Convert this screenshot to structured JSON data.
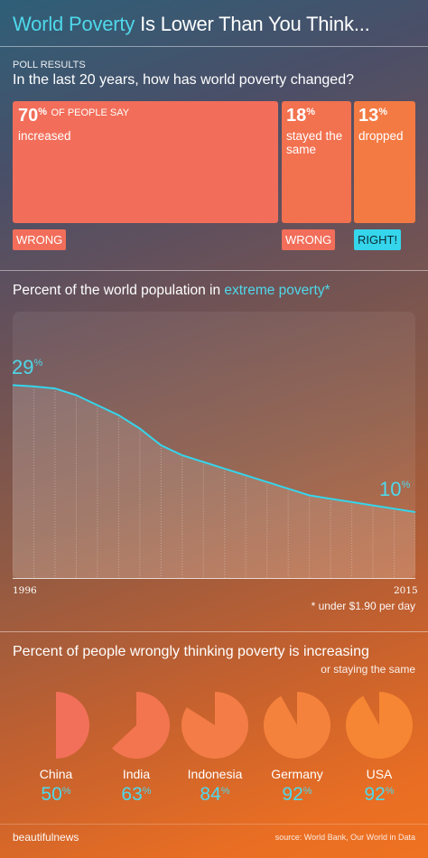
{
  "header": {
    "title_highlight": "World Poverty",
    "title_rest": " Is Lower Than You Think..."
  },
  "poll": {
    "label": "POLL RESULTS",
    "question": "In the last 20 years, how has world poverty changed?",
    "boxes": [
      {
        "value": "70",
        "unit": "%",
        "lead": "OF PEOPLE SAY",
        "text": "increased",
        "verdict": "WRONG",
        "color": "#f26e5a"
      },
      {
        "value": "18",
        "unit": "%",
        "lead": "",
        "text": "stayed the same",
        "verdict": "WRONG",
        "color": "#f2714f"
      },
      {
        "value": "13",
        "unit": "%",
        "lead": "",
        "text": "dropped",
        "verdict": "RIGHT!",
        "color": "#f37a43"
      }
    ],
    "wrong_color": "#f26e5a",
    "right_color": "#35d5ec"
  },
  "chart2": {
    "title_prefix": "Percent of the world population in ",
    "title_highlight": "extreme poverty",
    "title_mark": "*",
    "footnote": "* under $1.90 per day",
    "start_label": "29",
    "end_label": "10",
    "unit": "%"
  },
  "chart3": {
    "title": "Percent of people wrongly thinking poverty is increasing",
    "subtitle": "or staying the same"
  },
  "footer": {
    "brand": "beautifulnews",
    "source": "source: World Bank, Our World in Data"
  },
  "chart_data": [
    {
      "type": "bar",
      "title": "In the last 20 years, how has world poverty changed?",
      "categories": [
        "increased",
        "stayed the same",
        "dropped"
      ],
      "values": [
        70,
        18,
        13
      ],
      "unit": "%"
    },
    {
      "type": "area",
      "title": "Percent of the world population in extreme poverty",
      "x": [
        1996,
        1997,
        1998,
        1999,
        2000,
        2001,
        2002,
        2003,
        2004,
        2005,
        2006,
        2007,
        2008,
        2009,
        2010,
        2011,
        2012,
        2013,
        2014,
        2015
      ],
      "y": [
        29,
        28.8,
        28.5,
        27.5,
        26,
        24.5,
        22.5,
        20,
        18.5,
        17.5,
        16.5,
        15.5,
        14.5,
        13.5,
        12.5,
        12,
        11.5,
        11,
        10.5,
        10
      ],
      "xlim": [
        1996,
        2015
      ],
      "ylim": [
        0,
        40
      ],
      "unit": "%"
    },
    {
      "type": "pie",
      "title": "Percent of people wrongly thinking poverty is increasing",
      "categories": [
        "China",
        "India",
        "Indonesia",
        "Germany",
        "USA"
      ],
      "values": [
        50,
        63,
        84,
        92,
        92
      ],
      "unit": "%",
      "colors": [
        "#f2705a",
        "#f37550",
        "#f47c46",
        "#f5823c",
        "#f68633"
      ]
    }
  ]
}
